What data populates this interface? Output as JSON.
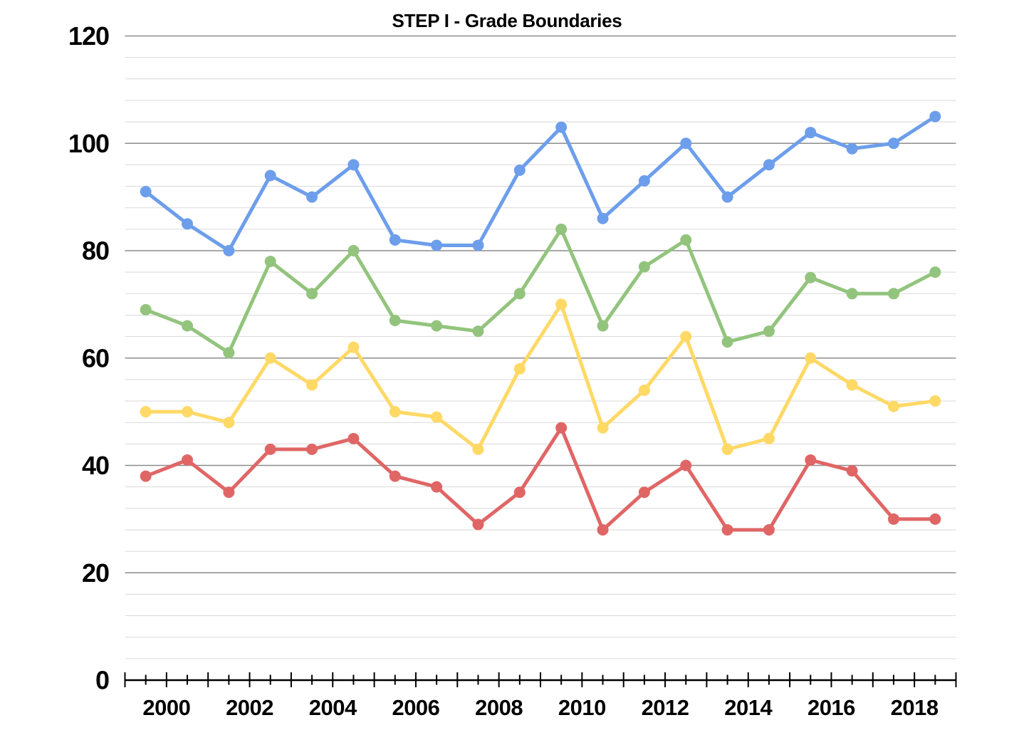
{
  "page": {
    "background": "#FFFFFF"
  },
  "chart_data": {
    "type": "line",
    "title": "STEP I - Grade Boundaries",
    "legend_position": "none",
    "grid": {
      "major_color": "#8C8C8C",
      "minor_color": "#D9D9D9",
      "major_on": true,
      "minor_on": true
    },
    "axis_color": "#000000",
    "text_color": "#000000",
    "x": [
      1999,
      2000,
      2001,
      2002,
      2003,
      2004,
      2005,
      2006,
      2007,
      2008,
      2009,
      2010,
      2011,
      2012,
      2013,
      2014,
      2015,
      2016,
      2017,
      2018
    ],
    "point_x_offset": 0.5,
    "x_axis_range": [
      1999,
      2019
    ],
    "x_major_tick_step": 1,
    "x_minor_tick_step": 0.5,
    "x_tick_label_years": [
      2000,
      2002,
      2004,
      2006,
      2008,
      2010,
      2012,
      2014,
      2016,
      2018
    ],
    "x_tick_labels": [
      "2000",
      "2002",
      "2004",
      "2006",
      "2008",
      "2010",
      "2012",
      "2014",
      "2016",
      "2018"
    ],
    "y_axis": {
      "range": [
        0,
        120
      ],
      "major_step": 20,
      "minor_step": 4,
      "tick_labels": [
        "0",
        "20",
        "40",
        "60",
        "80",
        "100",
        "120"
      ]
    },
    "series": [
      {
        "name": "blue",
        "color": "#6D9EEB",
        "values": [
          91,
          85,
          80,
          94,
          90,
          96,
          82,
          81,
          81,
          95,
          103,
          86,
          93,
          100,
          90,
          96,
          102,
          99,
          100,
          105
        ]
      },
      {
        "name": "green",
        "color": "#93C47D",
        "values": [
          69,
          66,
          61,
          78,
          72,
          80,
          67,
          66,
          65,
          72,
          84,
          66,
          77,
          82,
          63,
          65,
          75,
          72,
          72,
          76
        ]
      },
      {
        "name": "yellow",
        "color": "#FFD966",
        "values": [
          50,
          50,
          48,
          60,
          55,
          62,
          50,
          49,
          43,
          58,
          70,
          47,
          54,
          64,
          43,
          45,
          60,
          55,
          51,
          52
        ]
      },
      {
        "name": "red",
        "color": "#E06666",
        "values": [
          38,
          41,
          35,
          43,
          43,
          45,
          38,
          36,
          29,
          35,
          47,
          28,
          35,
          40,
          28,
          28,
          41,
          39,
          30,
          30
        ]
      }
    ]
  }
}
